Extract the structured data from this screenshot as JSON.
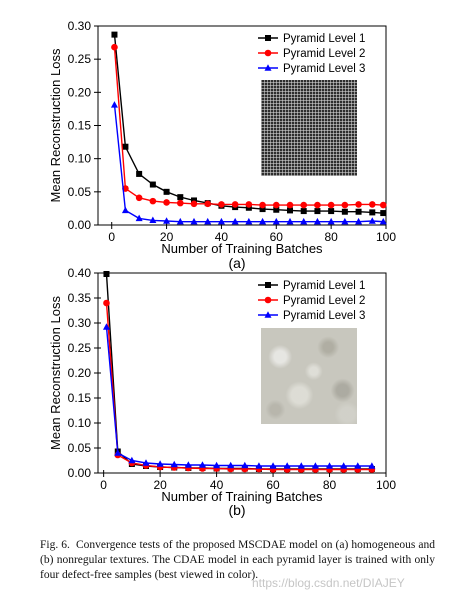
{
  "chart_data": [
    {
      "type": "line",
      "id": "a",
      "ylabel": "Mean Reconstruction Loss",
      "xlabel": "Number of Training Batches",
      "xlim": [
        -5,
        100
      ],
      "ylim": [
        0,
        0.3
      ],
      "xticks": [
        0,
        20,
        40,
        60,
        80,
        100
      ],
      "yticks": [
        0.0,
        0.05,
        0.1,
        0.15,
        0.2,
        0.25,
        0.3
      ],
      "ytick_labels": [
        "0.00",
        "0.05",
        "0.10",
        "0.15",
        "0.20",
        "0.25",
        "0.30"
      ],
      "legend_position": "top-right",
      "series": [
        {
          "name": "Pyramid Level 1",
          "color": "#000000",
          "marker": "square",
          "x": [
            1,
            5,
            10,
            15,
            20,
            25,
            30,
            35,
            40,
            45,
            50,
            55,
            60,
            65,
            70,
            75,
            80,
            85,
            90,
            95,
            99
          ],
          "y": [
            0.287,
            0.118,
            0.077,
            0.061,
            0.05,
            0.042,
            0.037,
            0.033,
            0.029,
            0.027,
            0.026,
            0.024,
            0.023,
            0.022,
            0.021,
            0.021,
            0.021,
            0.02,
            0.02,
            0.019,
            0.018
          ]
        },
        {
          "name": "Pyramid Level 2",
          "color": "#ff0000",
          "marker": "circle",
          "x": [
            1,
            5,
            10,
            15,
            20,
            25,
            30,
            35,
            40,
            45,
            50,
            55,
            60,
            65,
            70,
            75,
            80,
            85,
            90,
            95,
            99
          ],
          "y": [
            0.268,
            0.055,
            0.041,
            0.036,
            0.034,
            0.033,
            0.032,
            0.032,
            0.031,
            0.031,
            0.031,
            0.03,
            0.03,
            0.03,
            0.03,
            0.03,
            0.03,
            0.03,
            0.031,
            0.031,
            0.03
          ]
        },
        {
          "name": "Pyramid Level 3",
          "color": "#0000ff",
          "marker": "triangle",
          "x": [
            1,
            5,
            10,
            15,
            20,
            25,
            30,
            35,
            40,
            45,
            50,
            55,
            60,
            65,
            70,
            75,
            80,
            85,
            90,
            95,
            99
          ],
          "y": [
            0.181,
            0.022,
            0.01,
            0.007,
            0.006,
            0.005,
            0.005,
            0.005,
            0.005,
            0.005,
            0.005,
            0.005,
            0.005,
            0.005,
            0.005,
            0.005,
            0.005,
            0.005,
            0.005,
            0.006,
            0.005
          ]
        }
      ]
    },
    {
      "type": "line",
      "id": "b",
      "ylabel": "Mean Reconstruction Loss",
      "xlabel": "Number of Training Batches",
      "xlim": [
        -2,
        100
      ],
      "ylim": [
        0,
        0.4
      ],
      "xticks": [
        0,
        20,
        40,
        60,
        80,
        100
      ],
      "yticks": [
        0.0,
        0.05,
        0.1,
        0.15,
        0.2,
        0.25,
        0.3,
        0.35,
        0.4
      ],
      "ytick_labels": [
        "0.00",
        "0.05",
        "0.10",
        "0.15",
        "0.20",
        "0.25",
        "0.30",
        "0.35",
        "0.40"
      ],
      "legend_position": "top-right",
      "series": [
        {
          "name": "Pyramid Level 1",
          "color": "#000000",
          "marker": "square",
          "x": [
            1,
            5,
            10,
            15,
            20,
            25,
            30,
            35,
            40,
            45,
            50,
            55,
            60,
            65,
            70,
            75,
            80,
            85,
            90,
            95
          ],
          "y": [
            0.398,
            0.043,
            0.018,
            0.014,
            0.012,
            0.011,
            0.01,
            0.01,
            0.009,
            0.009,
            0.009,
            0.008,
            0.008,
            0.008,
            0.008,
            0.008,
            0.008,
            0.008,
            0.008,
            0.008
          ]
        },
        {
          "name": "Pyramid Level 2",
          "color": "#ff0000",
          "marker": "circle",
          "x": [
            1,
            5,
            10,
            15,
            20,
            25,
            30,
            35,
            40,
            45,
            50,
            55,
            60,
            65,
            70,
            75,
            80,
            85,
            90,
            95
          ],
          "y": [
            0.34,
            0.036,
            0.02,
            0.015,
            0.012,
            0.011,
            0.01,
            0.009,
            0.009,
            0.008,
            0.008,
            0.008,
            0.007,
            0.007,
            0.007,
            0.007,
            0.007,
            0.007,
            0.007,
            0.007
          ]
        },
        {
          "name": "Pyramid Level 3",
          "color": "#0000ff",
          "marker": "triangle",
          "x": [
            1,
            5,
            10,
            15,
            20,
            25,
            30,
            35,
            40,
            45,
            50,
            55,
            60,
            65,
            70,
            75,
            80,
            85,
            90,
            95
          ],
          "y": [
            0.292,
            0.04,
            0.025,
            0.02,
            0.018,
            0.017,
            0.016,
            0.016,
            0.015,
            0.015,
            0.015,
            0.014,
            0.014,
            0.014,
            0.014,
            0.014,
            0.014,
            0.014,
            0.014,
            0.014
          ]
        }
      ]
    }
  ],
  "subfigure_labels": [
    "(a)",
    "(b)"
  ],
  "caption": {
    "label": "Fig. 6.",
    "text": "Convergence tests of the proposed MSCDAE model on (a) homogeneous and (b) nonregular textures. The CDAE model in each pyramid layer is trained with only four defect-free samples (best viewed in color)."
  },
  "watermark": "https://blog.csdn.net/DIAJEY"
}
